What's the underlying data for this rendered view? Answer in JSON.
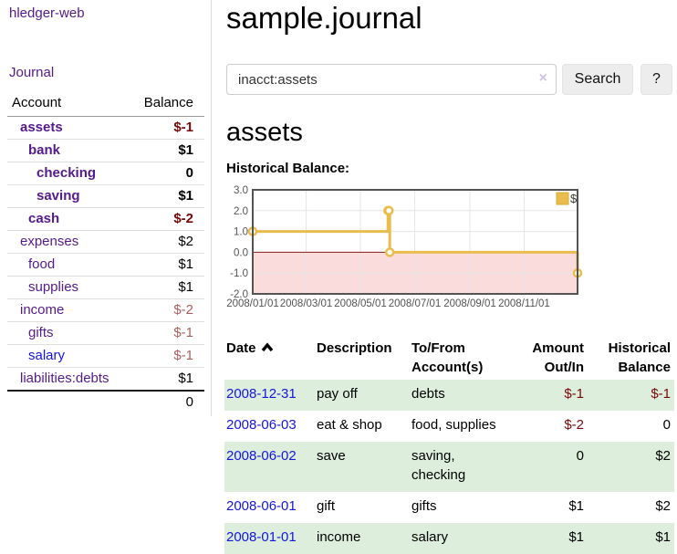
{
  "sidebar": {
    "brand": "hledger-web",
    "nav": {
      "journal": "Journal"
    },
    "accounts_table": {
      "headers": {
        "account": "Account",
        "balance": "Balance"
      },
      "rows": [
        {
          "name": "assets",
          "level": 1,
          "bold": true,
          "balance": "$-1"
        },
        {
          "name": "bank",
          "level": 2,
          "bold": true,
          "balance": "$1"
        },
        {
          "name": "checking",
          "level": 3,
          "bold": true,
          "balance": "0"
        },
        {
          "name": "saving",
          "level": 3,
          "bold": true,
          "balance": "$1"
        },
        {
          "name": "cash",
          "level": 2,
          "bold": true,
          "balance": "$-2"
        },
        {
          "name": "expenses",
          "level": 1,
          "bold": false,
          "balance": "$2"
        },
        {
          "name": "food",
          "level": 2,
          "bold": false,
          "balance": "$1"
        },
        {
          "name": "supplies",
          "level": 2,
          "bold": false,
          "balance": "$1"
        },
        {
          "name": "income",
          "level": 1,
          "bold": false,
          "balance": "$-2"
        },
        {
          "name": "gifts",
          "level": 2,
          "bold": false,
          "balance": "$-1"
        },
        {
          "name": "salary",
          "level": 2,
          "bold": false,
          "balance": "$-1",
          "link_color": "blue"
        },
        {
          "name": "liabilities:debts",
          "level": 1,
          "bold": false,
          "balance": "$1"
        }
      ],
      "total": "0"
    }
  },
  "header": {
    "title": "sample.journal"
  },
  "search": {
    "query": "inacct:assets",
    "clear_icon": "×",
    "button": "Search",
    "help_button": "?"
  },
  "account_page": {
    "heading": "assets",
    "chart_title": "Historical Balance:"
  },
  "chart_data": {
    "type": "line",
    "step": true,
    "title": "Historical Balance:",
    "series": [
      {
        "name": "$",
        "color": "#e9bd4d",
        "points": [
          [
            "2008-01-01",
            1
          ],
          [
            "2008-06-01",
            2
          ],
          [
            "2008-06-02",
            2
          ],
          [
            "2008-06-03",
            0
          ],
          [
            "2008-12-31",
            -1
          ]
        ]
      }
    ],
    "x_range": [
      "2008-01-01",
      "2008-12-31"
    ],
    "ylim": [
      -2,
      3
    ],
    "x_ticks": [
      "2008/01/01",
      "2008/03/01",
      "2008/05/01",
      "2008/07/01",
      "2008/09/01",
      "2008/11/01"
    ],
    "y_ticks": [
      "3.0",
      "2.0",
      "1.0",
      "0.0",
      "-1.0",
      "-2.0"
    ],
    "legend": {
      "label": "$",
      "position": "top-right"
    },
    "grid": true,
    "colors": {
      "grid": "#e6e6e6",
      "border": "#545454",
      "negative_region": "#fbdcdc",
      "zero_line": "#8b1c1c",
      "tick_label": "#545454"
    }
  },
  "register": {
    "columns": [
      {
        "lines": [
          "Date"
        ],
        "sorted": "asc",
        "align": "left"
      },
      {
        "lines": [
          "Description"
        ],
        "align": "left"
      },
      {
        "lines": [
          "To/From",
          "Account(s)"
        ],
        "align": "left"
      },
      {
        "lines": [
          "Amount",
          "Out/In"
        ],
        "align": "right"
      },
      {
        "lines": [
          "Historical",
          "Balance"
        ],
        "align": "right"
      }
    ],
    "rows": [
      {
        "date": "2008-12-31",
        "description": "pay off",
        "accounts": "debts",
        "amount": "$-1",
        "balance": "$-1"
      },
      {
        "date": "2008-06-03",
        "description": "eat & shop",
        "accounts": "food, supplies",
        "amount": "$-2",
        "balance": "0"
      },
      {
        "date": "2008-06-02",
        "description": "save",
        "accounts": "saving,\nchecking",
        "amount": "0",
        "balance": "$2"
      },
      {
        "date": "2008-06-01",
        "description": "gift",
        "accounts": "gifts",
        "amount": "$1",
        "balance": "$2"
      },
      {
        "date": "2008-01-01",
        "description": "income",
        "accounts": "salary",
        "amount": "$1",
        "balance": "$1"
      }
    ]
  }
}
